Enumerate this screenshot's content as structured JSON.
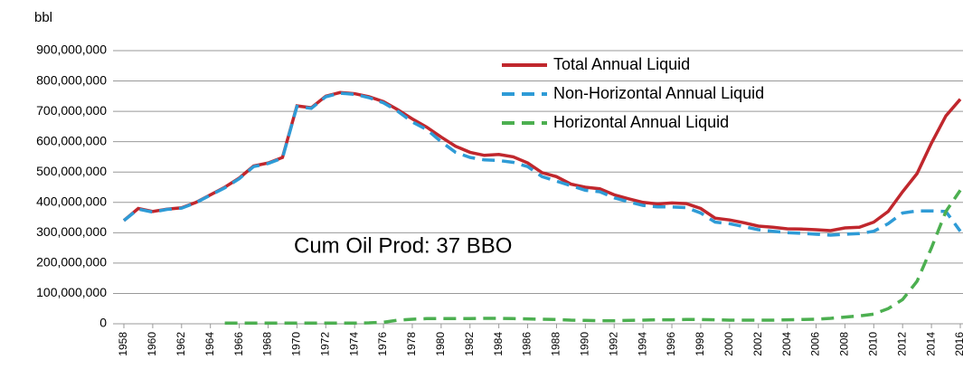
{
  "chart_data": {
    "type": "line",
    "y_label": "bbl",
    "annotation": "Cum Oil Prod: 37 BBO",
    "x": [
      1958,
      1959,
      1960,
      1961,
      1962,
      1963,
      1964,
      1965,
      1966,
      1967,
      1968,
      1969,
      1970,
      1971,
      1972,
      1973,
      1974,
      1975,
      1976,
      1977,
      1978,
      1979,
      1980,
      1981,
      1982,
      1983,
      1984,
      1985,
      1986,
      1987,
      1988,
      1989,
      1990,
      1991,
      1992,
      1993,
      1994,
      1995,
      1996,
      1997,
      1998,
      1999,
      2000,
      2001,
      2002,
      2003,
      2004,
      2005,
      2006,
      2007,
      2008,
      2009,
      2010,
      2011,
      2012,
      2013,
      2014,
      2015,
      2016
    ],
    "xlim": [
      1958,
      2016
    ],
    "xticks": [
      1958,
      1960,
      1962,
      1964,
      1966,
      1968,
      1970,
      1972,
      1974,
      1976,
      1978,
      1980,
      1982,
      1984,
      1986,
      1988,
      1990,
      1992,
      1994,
      1996,
      1998,
      2000,
      2002,
      2004,
      2006,
      2008,
      2010,
      2012,
      2014,
      2016
    ],
    "ylim": [
      0,
      900000000
    ],
    "yticks": [
      0,
      {
        "value": 100000000,
        "label": "100,000,000"
      },
      {
        "value": 200000000,
        "label": "200,000,000"
      },
      {
        "value": 300000000,
        "label": "300,000,000"
      },
      {
        "value": 400000000,
        "label": "400,000,000"
      },
      {
        "value": 500000000,
        "label": "500,000,000"
      },
      {
        "value": 600000000,
        "label": "600,000,000"
      },
      {
        "value": 700000000,
        "label": "700,000,000"
      },
      {
        "value": 800000000,
        "label": "800,000,000"
      },
      {
        "value": 900000000,
        "label": "900,000,000"
      }
    ],
    "grid": true,
    "legend": "top-right",
    "series": [
      {
        "name": "Total Annual Liquid",
        "color": "#c0272d",
        "dash": "solid",
        "values": [
          340000000.0,
          380000000.0,
          370000000.0,
          378000000.0,
          382000000.0,
          400000000.0,
          425000000.0,
          450000000.0,
          480000000.0,
          520000000.0,
          530000000.0,
          548000000.0,
          718000000.0,
          712000000.0,
          750000000.0,
          762000000.0,
          758000000.0,
          748000000.0,
          732000000.0,
          705000000.0,
          675000000.0,
          648000000.0,
          615000000.0,
          585000000.0,
          565000000.0,
          555000000.0,
          558000000.0,
          550000000.0,
          530000000.0,
          498000000.0,
          485000000.0,
          460000000.0,
          450000000.0,
          445000000.0,
          425000000.0,
          412000000.0,
          400000000.0,
          395000000.0,
          398000000.0,
          396000000.0,
          380000000.0,
          348000000.0,
          342000000.0,
          333000000.0,
          322000000.0,
          318000000.0,
          313000000.0,
          312000000.0,
          310000000.0,
          307000000.0,
          316000000.0,
          318000000.0,
          335000000.0,
          370000000.0,
          435000000.0,
          495000000.0,
          595000000.0,
          685000000.0,
          740000000.0
        ]
      },
      {
        "name": "Non-Horizontal Annual Liquid",
        "color": "#2e9bd6",
        "dash": "dashed",
        "values": [
          340000000.0,
          378000000.0,
          368000000.0,
          377000000.0,
          381000000.0,
          399000000.0,
          424000000.0,
          448000000.0,
          478000000.0,
          518000000.0,
          528000000.0,
          546000000.0,
          716000000.0,
          710000000.0,
          748000000.0,
          760000000.0,
          756000000.0,
          745000000.0,
          728000000.0,
          700000000.0,
          665000000.0,
          640000000.0,
          600000000.0,
          565000000.0,
          548000000.0,
          540000000.0,
          538000000.0,
          532000000.0,
          518000000.0,
          485000000.0,
          470000000.0,
          455000000.0,
          440000000.0,
          435000000.0,
          415000000.0,
          402000000.0,
          390000000.0,
          385000000.0,
          385000000.0,
          383000000.0,
          365000000.0,
          335000000.0,
          330000000.0,
          320000000.0,
          310000000.0,
          305000000.0,
          300000000.0,
          298000000.0,
          295000000.0,
          292000000.0,
          295000000.0,
          297000000.0,
          305000000.0,
          330000000.0,
          365000000.0,
          372000000.0,
          372000000.0,
          370000000.0,
          305000000.0
        ]
      },
      {
        "name": "Horizontal Annual Liquid",
        "color": "#4caf50",
        "dash": "dashed",
        "values": [
          null,
          null,
          null,
          null,
          null,
          null,
          null,
          2000000.0,
          2000000.0,
          2000000.0,
          2000000.0,
          2000000.0,
          2000000.0,
          2000000.0,
          2000000.0,
          2000000.0,
          2000000.0,
          3000000.0,
          5000000.0,
          12000000.0,
          15000000.0,
          17000000.0,
          17000000.0,
          17000000.0,
          17000000.0,
          18000000.0,
          18000000.0,
          17000000.0,
          16000000.0,
          15000000.0,
          14000000.0,
          12000000.0,
          11000000.0,
          10000000.0,
          10000000.0,
          11000000.0,
          12000000.0,
          13000000.0,
          13000000.0,
          14000000.0,
          14000000.0,
          13000000.0,
          12000000.0,
          12000000.0,
          12000000.0,
          12000000.0,
          13000000.0,
          14000000.0,
          15000000.0,
          18000000.0,
          22000000.0,
          26000000.0,
          32000000.0,
          50000000.0,
          80000000.0,
          140000000.0,
          250000000.0,
          370000000.0,
          440000000.0
        ]
      }
    ]
  }
}
